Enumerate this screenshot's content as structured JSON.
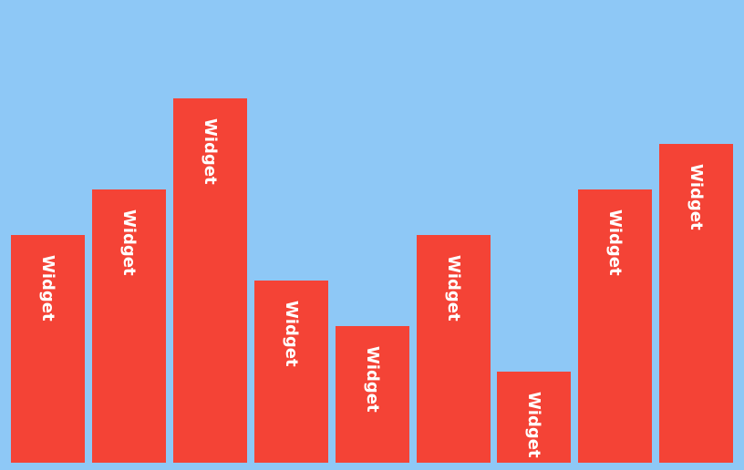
{
  "background_color": "#8ec8f6",
  "widget_color": "#f44336",
  "label_color": "#ffffff",
  "scale_max": 10,
  "widgets": [
    {
      "label": "Widget",
      "level": 5
    },
    {
      "label": "Widget",
      "level": 6
    },
    {
      "label": "Widget",
      "level": 8
    },
    {
      "label": "Widget",
      "level": 4
    },
    {
      "label": "Widget",
      "level": 3
    },
    {
      "label": "Widget",
      "level": 5
    },
    {
      "label": "Widget",
      "level": 2
    },
    {
      "label": "Widget",
      "level": 6
    },
    {
      "label": "Widget",
      "level": 7
    }
  ]
}
